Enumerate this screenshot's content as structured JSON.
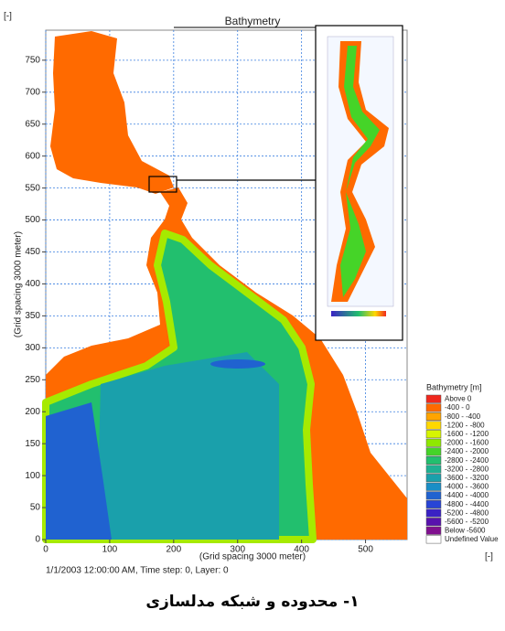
{
  "chart_data": {
    "type": "map",
    "title": "Bathymetry",
    "corner_label": "[-]",
    "x_unit_label": "[-]",
    "xlabel": "(Grid spacing 3000 meter)",
    "ylabel": "(Grid spacing 3000 meter)",
    "xlim": [
      0,
      565
    ],
    "ylim": [
      0,
      797
    ],
    "xticks": [
      0,
      100,
      200,
      300,
      400,
      500
    ],
    "yticks": [
      0,
      50,
      100,
      150,
      200,
      250,
      300,
      350,
      400,
      450,
      500,
      550,
      600,
      650,
      700,
      750
    ],
    "grid": true,
    "footer": "1/1/2003 12:00:00 AM, Time step: 0, Layer: 0",
    "legend": {
      "title": "Bathymetry [m]",
      "items": [
        {
          "label": "Above 0",
          "color": "#f0281e"
        },
        {
          "label": "-400 - 0",
          "color": "#ff6a00"
        },
        {
          "label": "-800 - -400",
          "color": "#ffa400"
        },
        {
          "label": "-1200 - -800",
          "color": "#ffd800"
        },
        {
          "label": "-1600 - -1200",
          "color": "#d6f500"
        },
        {
          "label": "-2000 - -1600",
          "color": "#8fe800"
        },
        {
          "label": "-2400 - -2000",
          "color": "#45d428"
        },
        {
          "label": "-2800 - -2400",
          "color": "#22bf6e"
        },
        {
          "label": "-3200 - -2800",
          "color": "#1fb092"
        },
        {
          "label": "-3600 - -3200",
          "color": "#1aa0ab"
        },
        {
          "label": "-4000 - -3600",
          "color": "#1a8ec6"
        },
        {
          "label": "-4400 - -4000",
          "color": "#2062d0"
        },
        {
          "label": "-4800 - -4400",
          "color": "#2844d6"
        },
        {
          "label": "-5200 - -4800",
          "color": "#3a22c4"
        },
        {
          "label": "-5600 - -5200",
          "color": "#5812ae"
        },
        {
          "label": "Below -5600",
          "color": "#80108f"
        },
        {
          "label": "Undefined Value",
          "color": "#ffffff"
        }
      ]
    }
  },
  "caption": "۱- محدوده و شبکه مدلسازی"
}
